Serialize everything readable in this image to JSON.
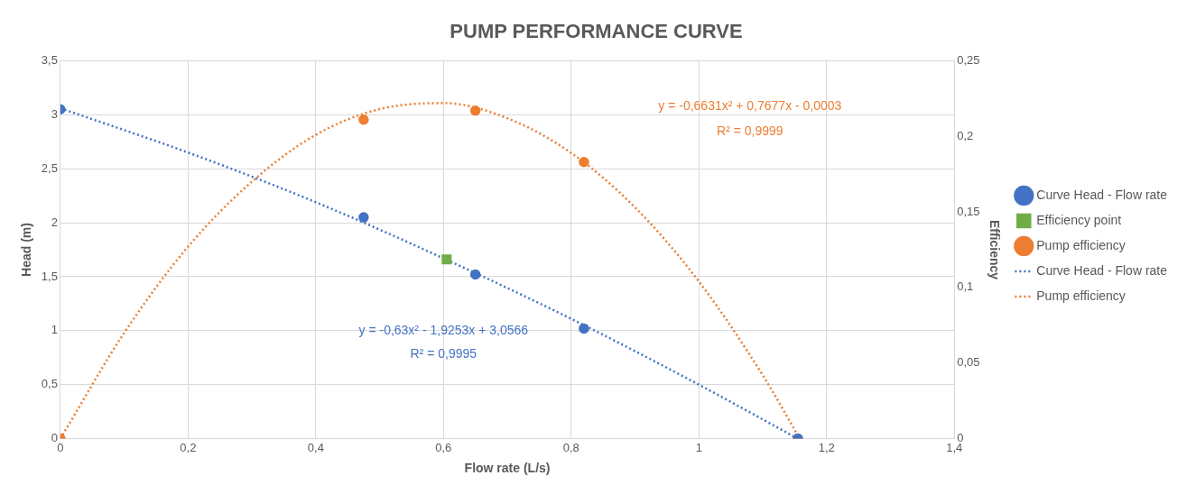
{
  "chart_data": {
    "type": "scatter",
    "title": "PUMP PERFORMANCE CURVE",
    "xlabel": "Flow rate (L/s)",
    "ylabel": "Head (m)",
    "y2label": "Efficiency",
    "xlim": [
      0,
      1.4
    ],
    "xticks": [
      0,
      {
        "value": 0.2,
        "label": "0,2"
      },
      {
        "value": 0.4,
        "label": "0,4"
      },
      {
        "value": 0.6,
        "label": "0,6"
      },
      {
        "value": 0.8,
        "label": "0,8"
      },
      1,
      {
        "value": 1.2,
        "label": "1,2"
      },
      {
        "value": 1.4,
        "label": "1,4"
      }
    ],
    "ylim": [
      0,
      3.5
    ],
    "yticks": [
      0,
      {
        "value": 0.5,
        "label": "0,5"
      },
      1,
      {
        "value": 1.5,
        "label": "1,5"
      },
      2,
      {
        "value": 2.5,
        "label": "2,5"
      },
      3,
      {
        "value": 3.5,
        "label": "3,5"
      }
    ],
    "y2lim": [
      0,
      0.25
    ],
    "y2ticks": [
      0,
      {
        "value": 0.05,
        "label": "0,05"
      },
      {
        "value": 0.1,
        "label": "0,1"
      },
      {
        "value": 0.15,
        "label": "0,15"
      },
      {
        "value": 0.2,
        "label": "0,2"
      },
      {
        "value": 0.25,
        "label": "0,25"
      }
    ],
    "grid": true,
    "legend": "right",
    "series": [
      {
        "name": "Curve Head - Flow rate",
        "type": "scatter",
        "marker": "circle",
        "color": "#4472c4",
        "x": [
          0,
          0.475,
          0.65,
          0.82,
          1.155
        ],
        "values": [
          3.05,
          2.05,
          1.52,
          1.02,
          0
        ]
      },
      {
        "name": "Efficiency point",
        "type": "scatter",
        "marker": "square",
        "color": "#70ad47",
        "x": [
          0.605
        ],
        "values": [
          1.66
        ]
      },
      {
        "name": "Pump efficiency",
        "type": "scatter",
        "marker": "circle",
        "color": "#ed7d31",
        "axis": "y2",
        "x": [
          0,
          0.475,
          0.65,
          0.82,
          1.155
        ],
        "values": [
          0,
          0.211,
          0.217,
          0.183,
          0
        ]
      },
      {
        "name": "Curve Head - Flow rate",
        "type": "line",
        "marker": "none",
        "line_style": "dotted",
        "color": "#4472c4",
        "x": [
          0,
          0.2,
          0.4,
          0.6,
          0.8,
          1.0,
          1.155
        ],
        "values": [
          3.06,
          2.65,
          2.19,
          1.67,
          1.11,
          0.5,
          0
        ]
      },
      {
        "name": "Pump efficiency",
        "type": "line",
        "marker": "none",
        "line_style": "dotted",
        "color": "#ed7d31",
        "axis": "y2",
        "x": [
          0,
          0.1,
          0.2,
          0.3,
          0.4,
          0.5,
          0.6,
          0.7,
          0.8,
          0.9,
          1.0,
          1.1,
          1.158
        ],
        "values": [
          0,
          0.07,
          0.127,
          0.17,
          0.201,
          0.218,
          0.222,
          0.212,
          0.189,
          0.153,
          0.104,
          0.042,
          0
        ]
      }
    ],
    "annotations": [
      "y = -0,63x² - 1,9253x + 3,0566",
      "R² = 0,9995",
      "y = -0,6631x² + 0,7677x - 0,0003",
      "R² = 0,9999"
    ]
  }
}
